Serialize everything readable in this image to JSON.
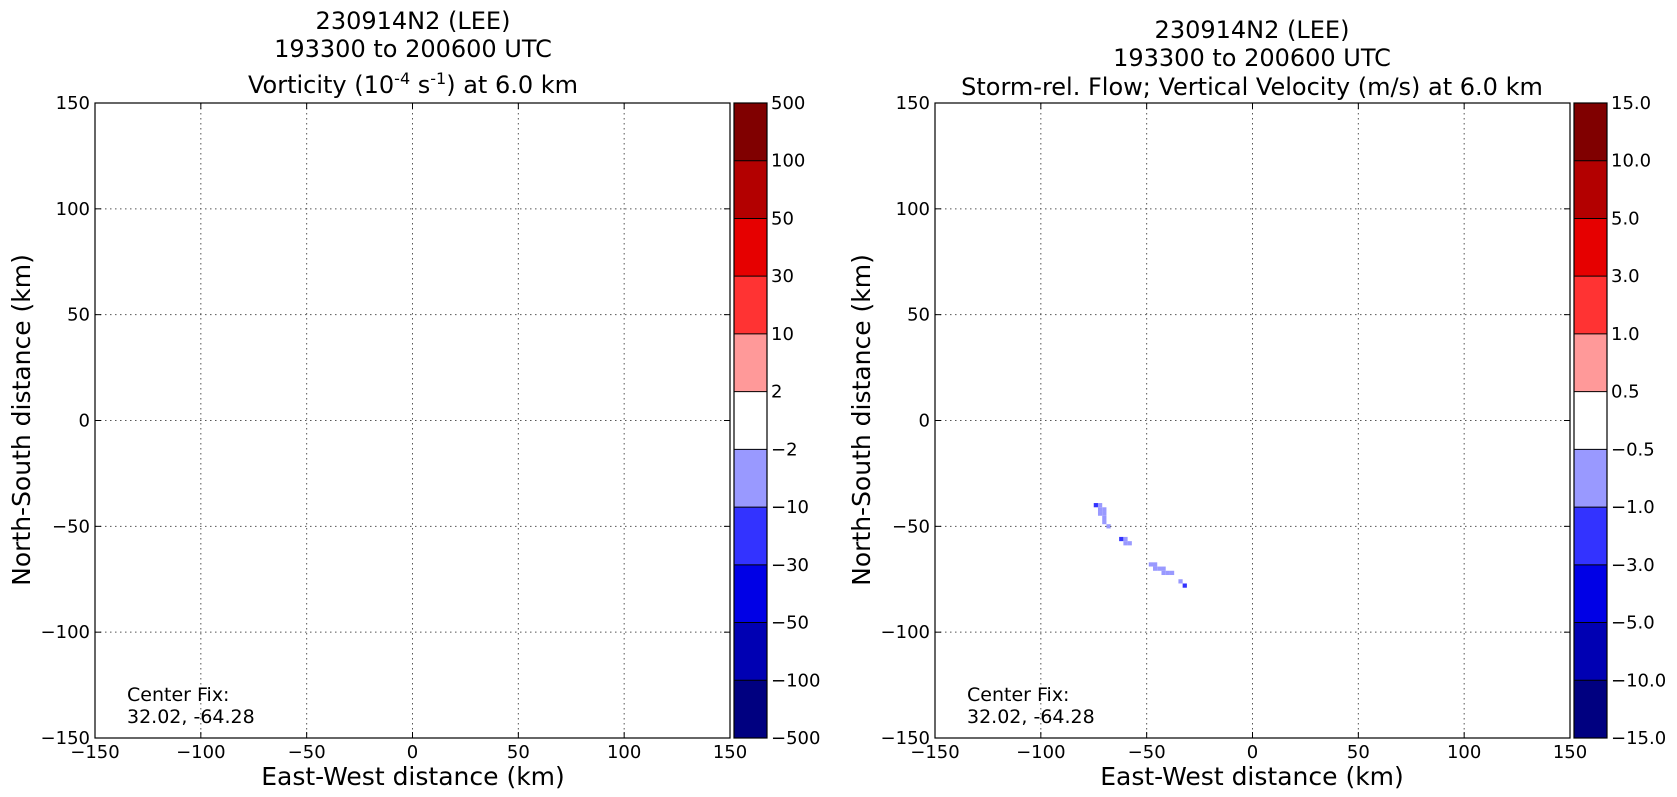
{
  "chart_data": [
    {
      "type": "heatmap",
      "title_lines": [
        "230914N2 (LEE)",
        "193300 to 200600 UTC"
      ],
      "title_field": {
        "pre": "Vorticity (10",
        "sup1": "-4",
        "mid": " s",
        "sup2": "-1",
        "post": ") at 6.0 km"
      },
      "xlabel": "East-West distance (km)",
      "ylabel": "North-South distance (km)",
      "xlim": [
        -150,
        150
      ],
      "ylim": [
        -150,
        150
      ],
      "xticks": [
        -150,
        -100,
        -50,
        0,
        50,
        100,
        150
      ],
      "yticks": [
        -150,
        -100,
        -50,
        0,
        50,
        100,
        150
      ],
      "xtick_labels": [
        "−150",
        "−100",
        "−50",
        "0",
        "50",
        "100",
        "150"
      ],
      "ytick_labels": [
        "−150",
        "−100",
        "−50",
        "0",
        "50",
        "100",
        "150"
      ],
      "grid": true,
      "colorbar": {
        "levels": [
          -500,
          -100,
          -50,
          -30,
          -10,
          -2,
          2,
          10,
          30,
          50,
          100,
          500
        ],
        "labels": [
          "−500",
          "−100",
          "−50",
          "−30",
          "−10",
          "−2",
          "2",
          "10",
          "30",
          "50",
          "100",
          "500"
        ],
        "colors": [
          "#000080",
          "#0000b3",
          "#0000e6",
          "#3333ff",
          "#9999ff",
          "#ffffff",
          "#ff9999",
          "#ff3333",
          "#e60000",
          "#b30000",
          "#800000"
        ]
      },
      "annotation": [
        "Center Fix:",
        "32.02, -64.28"
      ],
      "cells": []
    },
    {
      "type": "heatmap",
      "title_lines": [
        "230914N2 (LEE)",
        "193300 to 200600 UTC",
        "Storm-rel. Flow; Vertical Velocity (m/s) at 6.0 km"
      ],
      "xlabel": "East-West distance (km)",
      "ylabel": "North-South distance (km)",
      "xlim": [
        -150,
        150
      ],
      "ylim": [
        -150,
        150
      ],
      "xticks": [
        -150,
        -100,
        -50,
        0,
        50,
        100,
        150
      ],
      "yticks": [
        -150,
        -100,
        -50,
        0,
        50,
        100,
        150
      ],
      "xtick_labels": [
        "−150",
        "−100",
        "−50",
        "0",
        "50",
        "100",
        "150"
      ],
      "ytick_labels": [
        "−150",
        "−100",
        "−50",
        "0",
        "50",
        "100",
        "150"
      ],
      "grid": true,
      "colorbar": {
        "levels": [
          -15.0,
          -10.0,
          -5.0,
          -3.0,
          -1.0,
          -0.5,
          0.5,
          1.0,
          3.0,
          5.0,
          10.0,
          15.0
        ],
        "labels": [
          "−15.0",
          "−10.0",
          "−5.0",
          "−3.0",
          "−1.0",
          "−0.5",
          "0.5",
          "1.0",
          "3.0",
          "5.0",
          "10.0",
          "15.0"
        ],
        "colors": [
          "#000080",
          "#0000b3",
          "#0000e6",
          "#3333ff",
          "#9999ff",
          "#ffffff",
          "#ff9999",
          "#ff3333",
          "#e60000",
          "#b30000",
          "#800000"
        ]
      },
      "annotation": [
        "Center Fix:",
        "32.02, -64.28"
      ],
      "cells": [
        {
          "x": -74,
          "y": -40,
          "color": "#3333ff"
        },
        {
          "x": -72,
          "y": -40,
          "color": "#9999ff"
        },
        {
          "x": -72,
          "y": -42,
          "color": "#9999ff"
        },
        {
          "x": -70,
          "y": -42,
          "color": "#9999ff"
        },
        {
          "x": -72,
          "y": -44,
          "color": "#9999ff"
        },
        {
          "x": -70,
          "y": -44,
          "color": "#9999ff"
        },
        {
          "x": -70,
          "y": -46,
          "color": "#9999ff"
        },
        {
          "x": -70,
          "y": -48,
          "color": "#9999ff"
        },
        {
          "x": -68,
          "y": -50,
          "color": "#9999ff"
        },
        {
          "x": -62,
          "y": -56,
          "color": "#3333ff"
        },
        {
          "x": -60,
          "y": -56,
          "color": "#9999ff"
        },
        {
          "x": -60,
          "y": -58,
          "color": "#9999ff"
        },
        {
          "x": -58,
          "y": -58,
          "color": "#9999ff"
        },
        {
          "x": -48,
          "y": -68,
          "color": "#9999ff"
        },
        {
          "x": -46,
          "y": -68,
          "color": "#9999ff"
        },
        {
          "x": -46,
          "y": -70,
          "color": "#9999ff"
        },
        {
          "x": -44,
          "y": -70,
          "color": "#9999ff"
        },
        {
          "x": -42,
          "y": -70,
          "color": "#9999ff"
        },
        {
          "x": -42,
          "y": -72,
          "color": "#9999ff"
        },
        {
          "x": -40,
          "y": -72,
          "color": "#9999ff"
        },
        {
          "x": -38,
          "y": -72,
          "color": "#9999ff"
        },
        {
          "x": -34,
          "y": -76,
          "color": "#9999ff"
        },
        {
          "x": -32,
          "y": -78,
          "color": "#3333ff"
        }
      ]
    }
  ]
}
